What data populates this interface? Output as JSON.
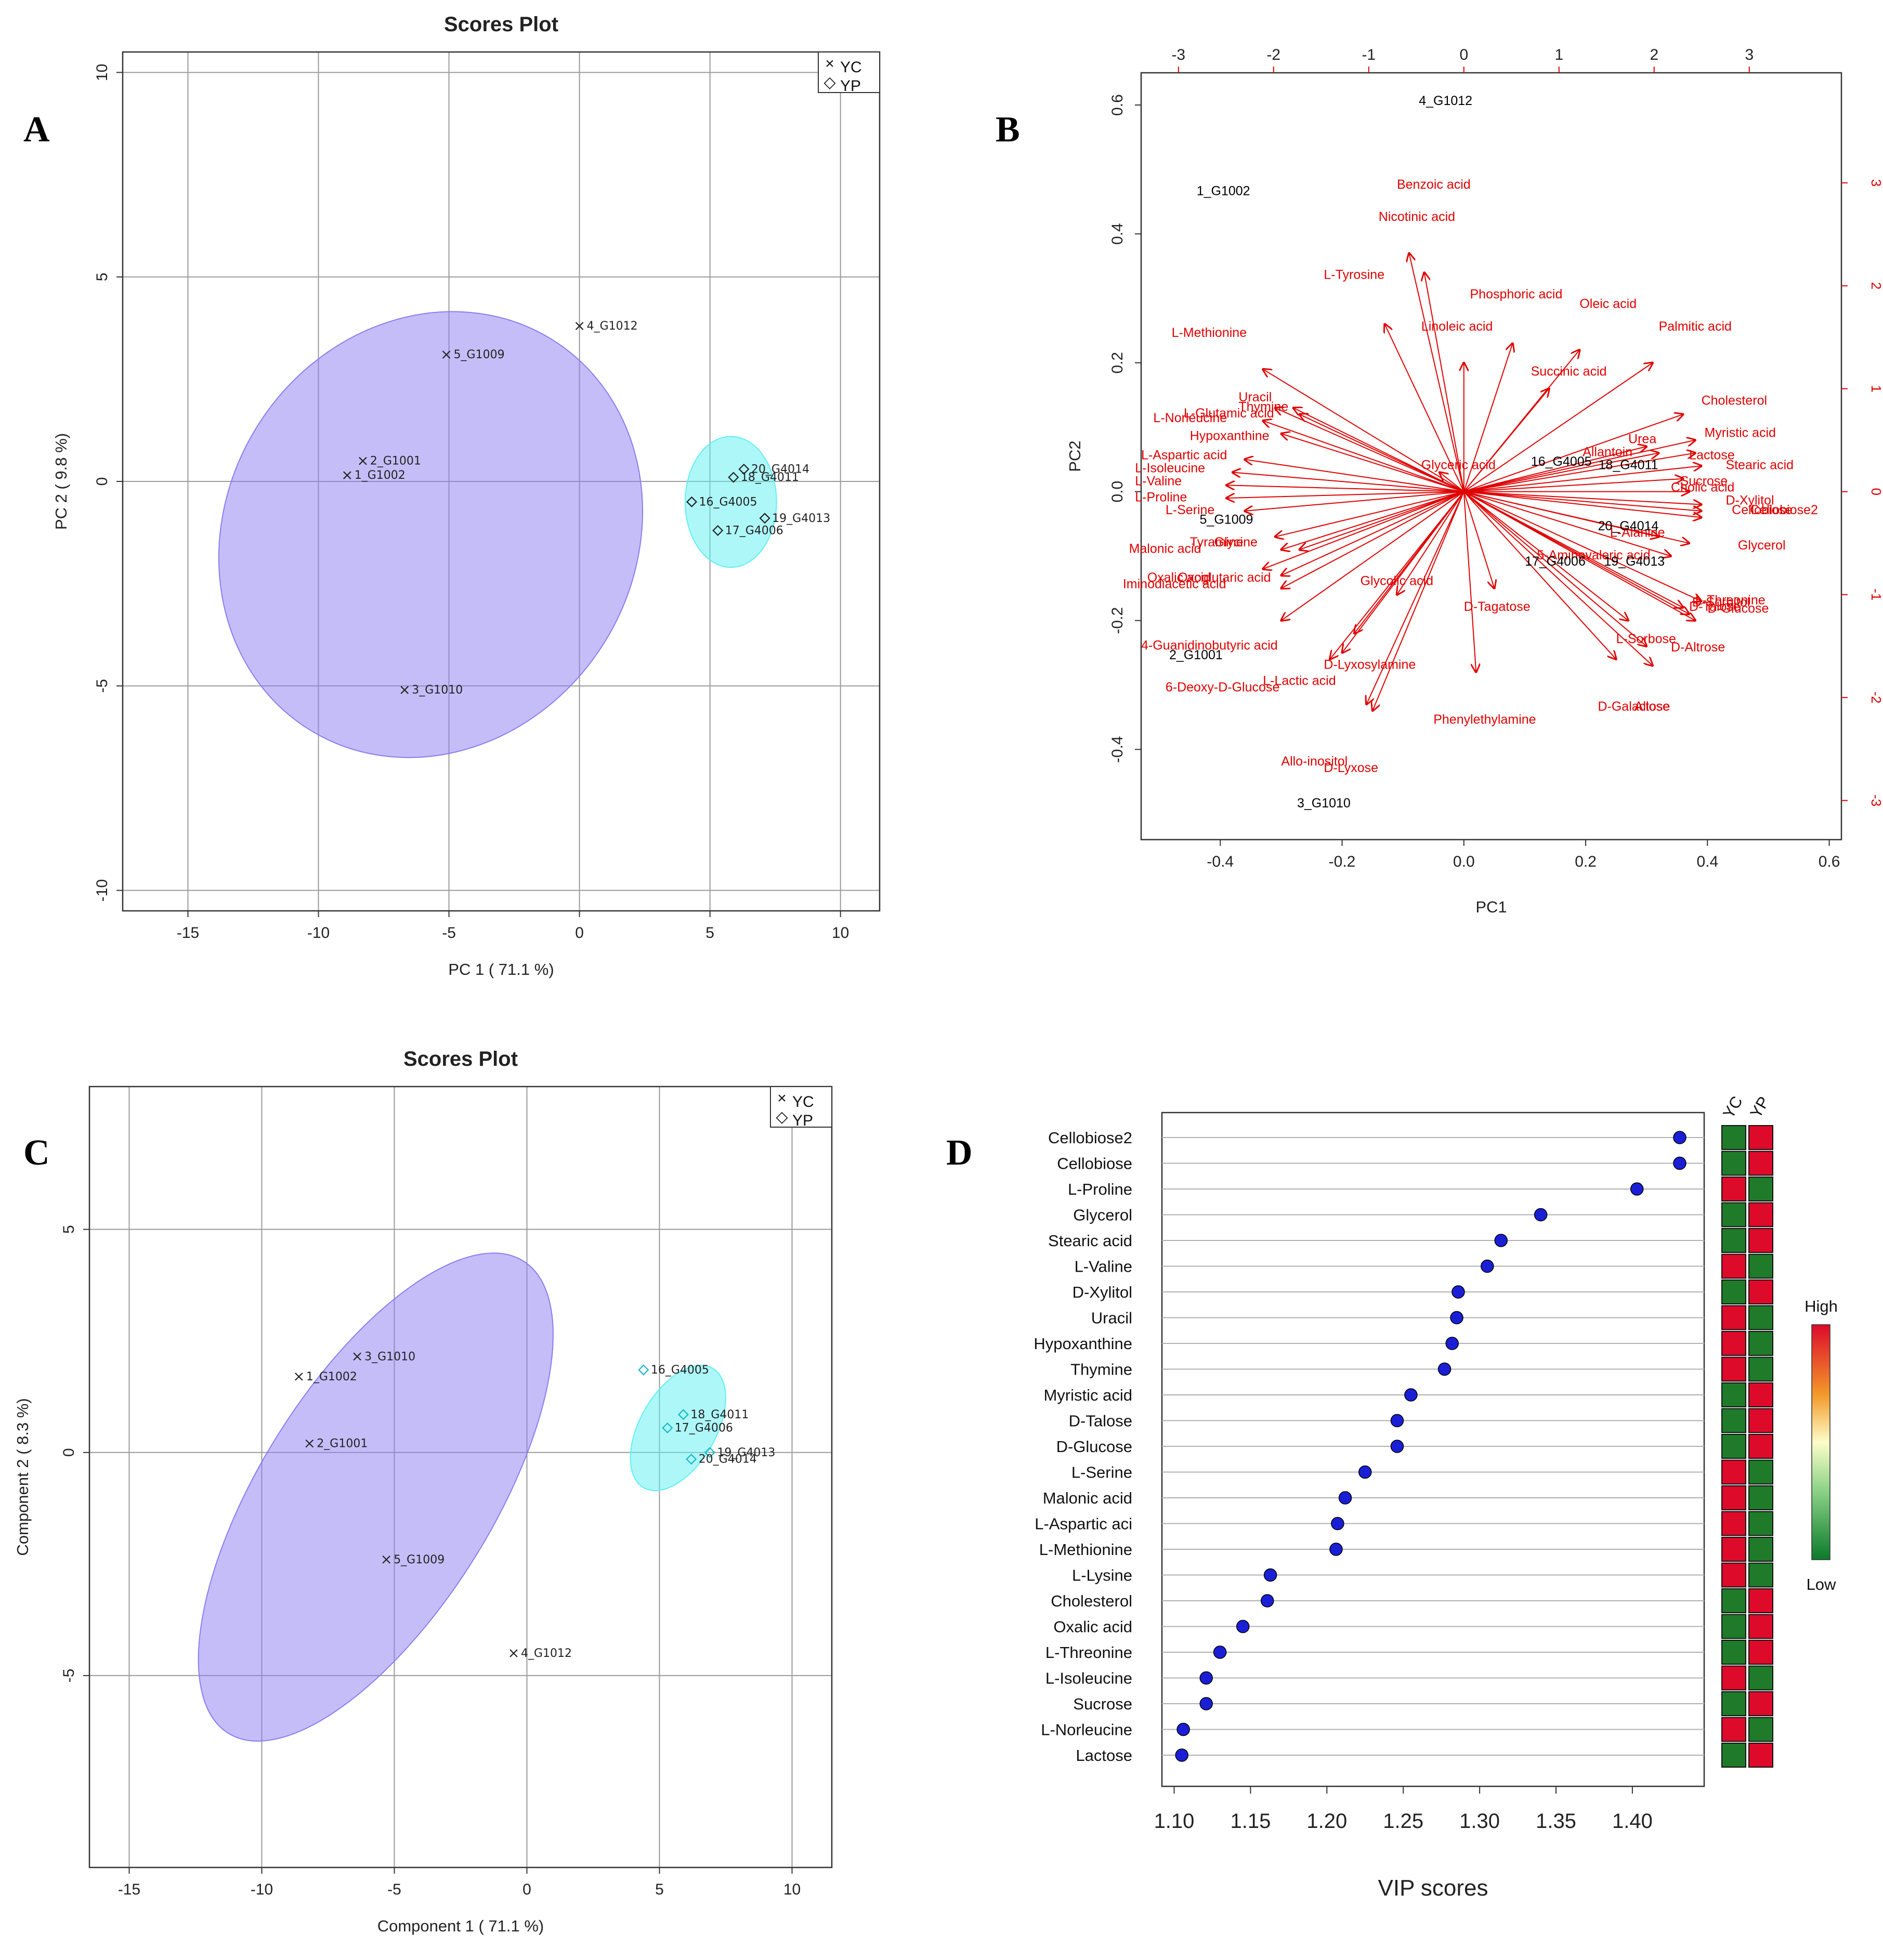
{
  "chart_data": [
    {
      "panel": "A",
      "type": "scatter",
      "title": "Scores Plot",
      "xlabel": "PC 1 ( 71.1 %)",
      "ylabel": "PC 2 ( 9.8 %)",
      "xlim": [
        -17.5,
        11.5
      ],
      "ylim": [
        -10.5,
        10.5
      ],
      "xticks": [
        -15,
        -10,
        -5,
        0,
        5,
        10
      ],
      "yticks": [
        -10,
        -5,
        0,
        5,
        10
      ],
      "legend": {
        "position": "top-right",
        "entries": [
          {
            "symbol": "×",
            "label": "YC"
          },
          {
            "symbol": "◇",
            "label": "YP"
          }
        ]
      },
      "ellipses": [
        {
          "group": "YC",
          "cx": -5.7,
          "cy": -1.3,
          "rx": 8.8,
          "ry": 5.0,
          "angle_deg": 58,
          "color": "#8b7cf2"
        },
        {
          "group": "YP",
          "cx": 5.8,
          "cy": -0.5,
          "rx": 1.75,
          "ry": 1.6,
          "angle_deg": 0,
          "color": "#5ef0f2"
        }
      ],
      "points": [
        {
          "label": "4_G1012",
          "x": 0,
          "y": 3.8,
          "group": "YC"
        },
        {
          "label": "5_G1009",
          "x": -5.1,
          "y": 3.1,
          "group": "YC"
        },
        {
          "label": "2_G1001",
          "x": -8.3,
          "y": 0.5,
          "group": "YC"
        },
        {
          "label": "1_G1002",
          "x": -8.9,
          "y": 0.15,
          "group": "YC"
        },
        {
          "label": "3_G1010",
          "x": -6.7,
          "y": -5.1,
          "group": "YC"
        },
        {
          "label": "20_G4014",
          "x": 6.3,
          "y": 0.3,
          "group": "YP"
        },
        {
          "label": "18_G4011",
          "x": 5.9,
          "y": 0.1,
          "group": "YP"
        },
        {
          "label": "16_G4005",
          "x": 4.3,
          "y": -0.5,
          "group": "YP"
        },
        {
          "label": "19_G4013",
          "x": 7.1,
          "y": -0.9,
          "group": "YP"
        },
        {
          "label": "17_G4006",
          "x": 5.3,
          "y": -1.2,
          "group": "YP"
        }
      ]
    },
    {
      "panel": "B",
      "type": "biplot",
      "xlabel": "PC1",
      "ylabel": "PC2",
      "xlim": [
        -0.53,
        0.62
      ],
      "ylim": [
        -0.54,
        0.65
      ],
      "xticks": [
        -0.4,
        -0.2,
        0.0,
        0.2,
        0.4,
        0.6
      ],
      "yticks": [
        -0.4,
        -0.2,
        0.0,
        0.2,
        0.4,
        0.6
      ],
      "top_ticks": [
        -3,
        -2,
        -1,
        0,
        1,
        2,
        3
      ],
      "right_ticks": [
        -3,
        -2,
        -1,
        0,
        1,
        2,
        3
      ],
      "observations": [
        {
          "label": "4_G1012",
          "x": -0.03,
          "y": 0.6
        },
        {
          "label": "1_G1002",
          "x": -0.395,
          "y": 0.46
        },
        {
          "label": "5_G1009",
          "x": -0.39,
          "y": -0.05
        },
        {
          "label": "16_G4005",
          "x": 0.16,
          "y": 0.04
        },
        {
          "label": "18_G4011",
          "x": 0.27,
          "y": 0.035
        },
        {
          "label": "20_G4014",
          "x": 0.27,
          "y": -0.06
        },
        {
          "label": "17_G4006",
          "x": 0.15,
          "y": -0.115
        },
        {
          "label": "19_G4013",
          "x": 0.28,
          "y": -0.115
        },
        {
          "label": "2_G1001",
          "x": -0.44,
          "y": -0.26
        },
        {
          "label": "3_G1010",
          "x": -0.23,
          "y": -0.49
        }
      ],
      "loadings": [
        {
          "label": "Benzoic acid",
          "x": -0.09,
          "y": 0.37,
          "lx": -0.11,
          "ly": 0.47
        },
        {
          "label": "Nicotinic acid",
          "x": -0.065,
          "y": 0.34,
          "lx": -0.14,
          "ly": 0.42
        },
        {
          "label": "L-Tyrosine",
          "x": -0.13,
          "y": 0.26,
          "lx": -0.23,
          "ly": 0.33
        },
        {
          "label": "Phosphoric acid",
          "x": 0.08,
          "y": 0.23,
          "lx": 0.01,
          "ly": 0.3
        },
        {
          "label": "Oleic acid",
          "x": 0.19,
          "y": 0.22,
          "lx": 0.19,
          "ly": 0.285
        },
        {
          "label": "Linoleic acid",
          "x": 0.0,
          "y": 0.2,
          "lx": -0.07,
          "ly": 0.25
        },
        {
          "label": "Palmitic acid",
          "x": 0.31,
          "y": 0.2,
          "lx": 0.32,
          "ly": 0.25
        },
        {
          "label": "L-Methionine",
          "x": -0.33,
          "y": 0.19,
          "lx": -0.48,
          "ly": 0.24
        },
        {
          "label": "Succinic acid",
          "x": 0.14,
          "y": 0.16,
          "lx": 0.11,
          "ly": 0.18
        },
        {
          "label": "Cholesterol",
          "x": 0.36,
          "y": 0.12,
          "lx": 0.39,
          "ly": 0.135
        },
        {
          "label": "Uracil",
          "x": -0.31,
          "y": 0.13,
          "lx": -0.37,
          "ly": 0.14
        },
        {
          "label": "Thymine",
          "x": -0.28,
          "y": 0.13,
          "lx": -0.37,
          "ly": 0.125
        },
        {
          "label": "L-Glutamic acid",
          "x": -0.27,
          "y": 0.12,
          "lx": -0.46,
          "ly": 0.115
        },
        {
          "label": "L-Norleucine",
          "x": -0.33,
          "y": 0.11,
          "lx": -0.51,
          "ly": 0.108
        },
        {
          "label": "Myristic acid",
          "x": 0.38,
          "y": 0.08,
          "lx": 0.395,
          "ly": 0.085
        },
        {
          "label": "Hypoxanthine",
          "x": -0.3,
          "y": 0.09,
          "lx": -0.45,
          "ly": 0.08
        },
        {
          "label": "Urea",
          "x": 0.3,
          "y": 0.07,
          "lx": 0.27,
          "ly": 0.075
        },
        {
          "label": "Allantoin",
          "x": 0.32,
          "y": 0.06,
          "lx": 0.195,
          "ly": 0.055
        },
        {
          "label": "L-Aspartic acid",
          "x": -0.36,
          "y": 0.05,
          "lx": -0.53,
          "ly": 0.05
        },
        {
          "label": "Lactose",
          "x": 0.38,
          "y": 0.06,
          "lx": 0.37,
          "ly": 0.05
        },
        {
          "label": "Stearic acid",
          "x": 0.39,
          "y": 0.04,
          "lx": 0.43,
          "ly": 0.035
        },
        {
          "label": "Glyceric acid",
          "x": -0.04,
          "y": 0.03,
          "lx": -0.07,
          "ly": 0.035
        },
        {
          "label": "L-Isoleucine",
          "x": -0.38,
          "y": 0.03,
          "lx": -0.54,
          "ly": 0.03
        },
        {
          "label": "Sucrose",
          "x": 0.36,
          "y": 0.02,
          "lx": 0.355,
          "ly": 0.01
        },
        {
          "label": "L-Valine",
          "x": -0.39,
          "y": 0.01,
          "lx": -0.54,
          "ly": 0.01
        },
        {
          "label": "Cholic acid",
          "x": 0.37,
          "y": 0.0,
          "lx": 0.34,
          "ly": 0.0
        },
        {
          "label": "L-Proline",
          "x": -0.39,
          "y": -0.01,
          "lx": -0.54,
          "ly": -0.015
        },
        {
          "label": "D-Xylitol",
          "x": 0.39,
          "y": -0.02,
          "lx": 0.43,
          "ly": -0.02
        },
        {
          "label": "Cellobiose",
          "x": 0.39,
          "y": -0.03,
          "lx": 0.44,
          "ly": -0.035
        },
        {
          "label": "Cellobiose2",
          "x": 0.39,
          "y": -0.04,
          "lx": 0.47,
          "ly": -0.035
        },
        {
          "label": "L-Serine",
          "x": -0.36,
          "y": -0.03,
          "lx": -0.49,
          "ly": -0.035
        },
        {
          "label": "L-Alanine",
          "x": 0.32,
          "y": -0.07,
          "lx": 0.24,
          "ly": -0.07
        },
        {
          "label": "Malonic acid",
          "x": -0.31,
          "y": -0.07,
          "lx": -0.55,
          "ly": -0.095
        },
        {
          "label": "Tyramine",
          "x": -0.3,
          "y": -0.09,
          "lx": -0.45,
          "ly": -0.085
        },
        {
          "label": "Glycine",
          "x": -0.27,
          "y": -0.09,
          "lx": -0.41,
          "ly": -0.085
        },
        {
          "label": "Glycerol",
          "x": 0.37,
          "y": -0.08,
          "lx": 0.45,
          "ly": -0.09
        },
        {
          "label": "5-Aminovaleric acid",
          "x": 0.34,
          "y": -0.1,
          "lx": 0.12,
          "ly": -0.105
        },
        {
          "label": "Iminodiacetic acid",
          "x": -0.33,
          "y": -0.12,
          "lx": -0.56,
          "ly": -0.15
        },
        {
          "label": "Oxalic acid",
          "x": -0.3,
          "y": -0.13,
          "lx": -0.52,
          "ly": -0.14
        },
        {
          "label": "Oxoglutaric acid",
          "x": -0.3,
          "y": -0.15,
          "lx": -0.47,
          "ly": -0.14
        },
        {
          "label": "Glycolic acid",
          "x": -0.11,
          "y": -0.16,
          "lx": -0.17,
          "ly": -0.145
        },
        {
          "label": "D-Tagatose",
          "x": 0.05,
          "y": -0.15,
          "lx": 0.0,
          "ly": -0.185
        },
        {
          "label": "L-Threonine",
          "x": 0.39,
          "y": -0.17,
          "lx": 0.38,
          "ly": -0.175
        },
        {
          "label": "D-Sorbitol",
          "x": 0.36,
          "y": -0.18,
          "lx": 0.375,
          "ly": -0.178
        },
        {
          "label": "D-Talose",
          "x": 0.37,
          "y": -0.19,
          "lx": 0.37,
          "ly": -0.185
        },
        {
          "label": "D-Glucose",
          "x": 0.38,
          "y": -0.2,
          "lx": 0.4,
          "ly": -0.188
        },
        {
          "label": "L-Sorbose",
          "x": 0.27,
          "y": -0.2,
          "lx": 0.25,
          "ly": -0.235
        },
        {
          "label": "D-Altrose",
          "x": 0.3,
          "y": -0.24,
          "lx": 0.34,
          "ly": -0.248
        },
        {
          "label": "4-Guanidinobutyric acid",
          "x": -0.3,
          "y": -0.2,
          "lx": -0.53,
          "ly": -0.245
        },
        {
          "label": "D-Lyxosylamine",
          "x": -0.18,
          "y": -0.22,
          "lx": -0.23,
          "ly": -0.275
        },
        {
          "label": "L-Lactic acid",
          "x": -0.2,
          "y": -0.25,
          "lx": -0.33,
          "ly": -0.3
        },
        {
          "label": "6-Deoxy-D-Glucose",
          "x": -0.22,
          "y": -0.26,
          "lx": -0.49,
          "ly": -0.31
        },
        {
          "label": "Phenylethylamine",
          "x": 0.02,
          "y": -0.28,
          "lx": -0.05,
          "ly": -0.36
        },
        {
          "label": "D-Galactose",
          "x": 0.25,
          "y": -0.26,
          "lx": 0.22,
          "ly": -0.34
        },
        {
          "label": "Allose",
          "x": 0.31,
          "y": -0.27,
          "lx": 0.28,
          "ly": -0.34
        },
        {
          "label": "Allo-inositol",
          "x": -0.16,
          "y": -0.33,
          "lx": -0.3,
          "ly": -0.425
        },
        {
          "label": "D-Lyxose",
          "x": -0.15,
          "y": -0.34,
          "lx": -0.23,
          "ly": -0.435
        }
      ]
    },
    {
      "panel": "C",
      "type": "scatter",
      "title": "Scores Plot",
      "xlabel": "Component 1 ( 71.1 %)",
      "ylabel": "Component 2 ( 8.3 %)",
      "xlim": [
        -16.5,
        11.5
      ],
      "ylim": [
        -9.3,
        8.2
      ],
      "xticks": [
        -15,
        -10,
        -5,
        0,
        5,
        10
      ],
      "yticks": [
        -5,
        0,
        5
      ],
      "legend": {
        "position": "top-right",
        "entries": [
          {
            "symbol": "×",
            "label": "YC"
          },
          {
            "symbol": "◇",
            "label": "YP"
          }
        ]
      },
      "ellipses": [
        {
          "group": "YC",
          "cx": -5.7,
          "cy": -1.0,
          "rx": 10.5,
          "ry": 2.6,
          "angle_deg": 58,
          "color": "#8b7cf2"
        },
        {
          "group": "YP",
          "cx": 5.7,
          "cy": 0.55,
          "rx": 2.6,
          "ry": 0.85,
          "angle_deg": 60,
          "color": "#5ef0f2"
        }
      ],
      "points": [
        {
          "label": "3_G1010",
          "x": -6.4,
          "y": 2.15,
          "group": "YC"
        },
        {
          "label": "1_G1002",
          "x": -8.6,
          "y": 1.7,
          "group": "YC"
        },
        {
          "label": "2_G1001",
          "x": -8.2,
          "y": 0.2,
          "group": "YC"
        },
        {
          "label": "5_G1009",
          "x": -5.3,
          "y": -2.4,
          "group": "YC"
        },
        {
          "label": "4_G1012",
          "x": -0.5,
          "y": -4.5,
          "group": "YC"
        },
        {
          "label": "16_G4005",
          "x": 4.4,
          "y": 1.85,
          "group": "YP"
        },
        {
          "label": "18_G4011",
          "x": 5.9,
          "y": 0.85,
          "group": "YP"
        },
        {
          "label": "17_G4006",
          "x": 5.3,
          "y": 0.55,
          "group": "YP"
        },
        {
          "label": "19_G4013",
          "x": 6.9,
          "y": 0.0,
          "group": "YP"
        },
        {
          "label": "20_G4014",
          "x": 6.2,
          "y": -0.15,
          "group": "YP"
        }
      ]
    },
    {
      "panel": "D",
      "type": "dot",
      "xlabel": "VIP scores",
      "xlim": [
        1.092,
        1.447
      ],
      "xticks": [
        "1.10",
        "1.15",
        "1.20",
        "1.25",
        "1.30",
        "1.35",
        "1.40"
      ],
      "groups": [
        "YC",
        "YP"
      ],
      "scale_high": "High",
      "scale_low": "Low",
      "items": [
        {
          "name": "Cellobiose2",
          "vip": 1.431,
          "yc": "low",
          "yp": "high"
        },
        {
          "name": "Cellobiose",
          "vip": 1.431,
          "yc": "low",
          "yp": "high"
        },
        {
          "name": "L-Proline",
          "vip": 1.403,
          "yc": "high",
          "yp": "low"
        },
        {
          "name": "Glycerol",
          "vip": 1.34,
          "yc": "low",
          "yp": "high"
        },
        {
          "name": "Stearic acid",
          "vip": 1.314,
          "yc": "low",
          "yp": "high"
        },
        {
          "name": "L-Valine",
          "vip": 1.305,
          "yc": "high",
          "yp": "low"
        },
        {
          "name": "D-Xylitol",
          "vip": 1.286,
          "yc": "low",
          "yp": "high"
        },
        {
          "name": "Uracil",
          "vip": 1.285,
          "yc": "high",
          "yp": "low"
        },
        {
          "name": "Hypoxanthine",
          "vip": 1.282,
          "yc": "high",
          "yp": "low"
        },
        {
          "name": "Thymine",
          "vip": 1.277,
          "yc": "high",
          "yp": "low"
        },
        {
          "name": "Myristic acid",
          "vip": 1.255,
          "yc": "low",
          "yp": "high"
        },
        {
          "name": "D-Talose",
          "vip": 1.246,
          "yc": "low",
          "yp": "high"
        },
        {
          "name": "D-Glucose",
          "vip": 1.246,
          "yc": "low",
          "yp": "high"
        },
        {
          "name": "L-Serine",
          "vip": 1.225,
          "yc": "high",
          "yp": "low"
        },
        {
          "name": "Malonic acid",
          "vip": 1.212,
          "yc": "high",
          "yp": "low"
        },
        {
          "name": "L-Aspartic aci",
          "vip": 1.207,
          "yc": "high",
          "yp": "low"
        },
        {
          "name": "L-Methionine",
          "vip": 1.206,
          "yc": "high",
          "yp": "low"
        },
        {
          "name": "L-Lysine",
          "vip": 1.163,
          "yc": "high",
          "yp": "low"
        },
        {
          "name": "Cholesterol",
          "vip": 1.161,
          "yc": "low",
          "yp": "high"
        },
        {
          "name": "Oxalic acid",
          "vip": 1.145,
          "yc": "low",
          "yp": "high"
        },
        {
          "name": "L-Threonine",
          "vip": 1.13,
          "yc": "low",
          "yp": "high"
        },
        {
          "name": "L-Isoleucine",
          "vip": 1.121,
          "yc": "high",
          "yp": "low"
        },
        {
          "name": "Sucrose",
          "vip": 1.121,
          "yc": "low",
          "yp": "high"
        },
        {
          "name": "L-Norleucine",
          "vip": 1.106,
          "yc": "high",
          "yp": "low"
        },
        {
          "name": "Lactose",
          "vip": 1.105,
          "yc": "low",
          "yp": "high"
        }
      ]
    }
  ],
  "panels": {
    "a": {
      "letter": "A"
    },
    "b": {
      "letter": "B"
    },
    "c": {
      "letter": "C"
    },
    "d": {
      "letter": "D"
    }
  },
  "colors": {
    "high": "#dd0a2a",
    "low": "#1f7a2a",
    "arrow": "#e00000",
    "dot": "#1a1fd6"
  }
}
